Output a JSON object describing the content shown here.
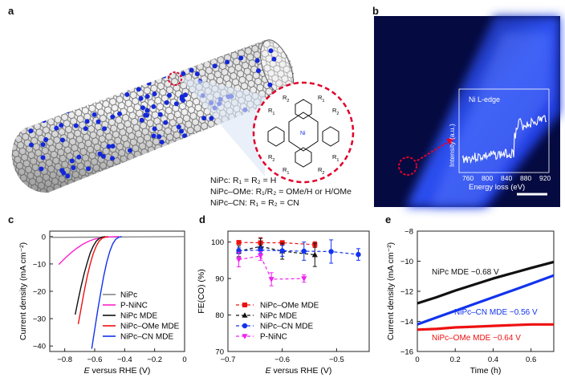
{
  "panels": {
    "a": {
      "letter": "a",
      "structure": {
        "center_atom": "Ni",
        "r_labels": [
          "R1",
          "R2",
          "R1",
          "R2",
          "R1",
          "R2",
          "R1",
          "R2"
        ]
      },
      "definitions": [
        "NiPc: R₁ = R₂ = H",
        "NiPc–OMe: R₁/R₂ = OMe/H or H/OMe",
        "NiPc–CN: R₁ = R₂ = CN"
      ]
    },
    "b": {
      "letter": "b",
      "inset": {
        "edge_label": "Ni L-edge",
        "ylabel": "Intensity (a.u.)",
        "xlabel": "Energy loss (eV)",
        "ticks": [
          "760",
          "800",
          "840",
          "880",
          "920"
        ]
      },
      "colors": {
        "background": "#1a2fd6",
        "highlight": "#e0022a"
      }
    },
    "c": {
      "letter": "c",
      "xlabel_italic": "E",
      "xlabel_rest": " versus RHE (V)",
      "ylabel": "Current density (mA cm⁻²)"
    },
    "d": {
      "letter": "d",
      "xlabel_italic": "E",
      "xlabel_rest": " versus RHE (V)",
      "ylabel": "FE(CO) (%)"
    },
    "e": {
      "letter": "e",
      "xlabel": "Time (h)",
      "ylabel": "Current density (mA cm⁻²)"
    }
  },
  "chart_data": [
    {
      "id": "c",
      "type": "line",
      "xlabel": "E versus RHE (V)",
      "ylabel": "Current density (mA cm⁻²)",
      "xlim": [
        -0.9,
        0.0
      ],
      "ylim": [
        -42,
        2
      ],
      "xticks": [
        -0.8,
        -0.6,
        -0.4,
        -0.2,
        0
      ],
      "xtick_labels": [
        "−0.8",
        "−0.6",
        "−0.4",
        "−0.2",
        "0"
      ],
      "yticks": [
        0,
        -10,
        -20,
        -30,
        -40
      ],
      "ytick_labels": [
        "0",
        "−10",
        "−20",
        "−30",
        "−40"
      ],
      "legend_position": "bottom-right",
      "series": [
        {
          "name": "NiPc",
          "color": "#888888",
          "x": [
            -0.9,
            -0.6,
            -0.3,
            0.0
          ],
          "y": [
            -0.3,
            -0.2,
            -0.1,
            0.0
          ]
        },
        {
          "name": "P-NiNC",
          "color": "#ff22cc",
          "x": [
            -0.84,
            -0.8,
            -0.76,
            -0.72,
            -0.68,
            -0.64,
            -0.6,
            -0.56,
            -0.52,
            -0.48,
            -0.44
          ],
          "y": [
            -10.2,
            -8.0,
            -6.0,
            -4.3,
            -2.8,
            -1.7,
            -0.9,
            -0.45,
            -0.2,
            -0.08,
            0.0
          ]
        },
        {
          "name": "NiPc MDE",
          "color": "#111111",
          "x": [
            -0.73,
            -0.71,
            -0.69,
            -0.67,
            -0.65,
            -0.63,
            -0.61,
            -0.59,
            -0.57,
            -0.55,
            -0.53
          ],
          "y": [
            -28.5,
            -23.0,
            -18.0,
            -13.5,
            -9.5,
            -6.0,
            -3.5,
            -1.7,
            -0.7,
            -0.2,
            0.0
          ]
        },
        {
          "name": "NiPc–OMe MDE",
          "color": "#ee1111",
          "x": [
            -0.71,
            -0.69,
            -0.67,
            -0.65,
            -0.63,
            -0.61,
            -0.59,
            -0.57,
            -0.55,
            -0.53,
            -0.51
          ],
          "y": [
            -32.0,
            -26.0,
            -20.0,
            -14.5,
            -10.0,
            -6.3,
            -3.5,
            -1.6,
            -0.6,
            -0.15,
            0.0
          ]
        },
        {
          "name": "NiPc–CN MDE",
          "color": "#1133ee",
          "x": [
            -0.62,
            -0.6,
            -0.58,
            -0.56,
            -0.54,
            -0.52,
            -0.5,
            -0.48,
            -0.46,
            -0.44,
            -0.42
          ],
          "y": [
            -41.0,
            -34.0,
            -27.0,
            -20.5,
            -14.5,
            -9.5,
            -5.5,
            -2.7,
            -1.0,
            -0.25,
            0.0
          ]
        }
      ]
    },
    {
      "id": "d",
      "type": "scatter",
      "xlabel": "E versus RHE (V)",
      "ylabel": "FE(CO) (%)",
      "xlim": [
        -0.7,
        -0.44
      ],
      "ylim": [
        70,
        103
      ],
      "xticks": [
        -0.7,
        -0.6,
        -0.5
      ],
      "xtick_labels": [
        "−0.7",
        "−0.6",
        "−0.5"
      ],
      "yticks": [
        70,
        80,
        90,
        100
      ],
      "ytick_labels": [
        "70",
        "80",
        "90",
        "100"
      ],
      "legend_position": "bottom-left",
      "series": [
        {
          "name": "NiPc–OMe MDE",
          "color": "#ee1111",
          "marker": "square",
          "x": [
            -0.68,
            -0.64,
            -0.6,
            -0.54
          ],
          "y": [
            99.9,
            99.8,
            99.8,
            99.3
          ],
          "err": [
            0.4,
            1.4,
            0.6,
            0.8
          ]
        },
        {
          "name": "NiPc MDE",
          "color": "#111111",
          "marker": "triangle-up",
          "x": [
            -0.68,
            -0.64,
            -0.6,
            -0.54
          ],
          "y": [
            97.5,
            98.8,
            97.5,
            96.5
          ],
          "err": [
            1.5,
            2.2,
            2.2,
            3.2
          ]
        },
        {
          "name": "NiPc–CN MDE",
          "color": "#1133ee",
          "marker": "circle",
          "x": [
            -0.68,
            -0.64,
            -0.6,
            -0.56,
            -0.51,
            -0.46
          ],
          "y": [
            97.6,
            97.8,
            97.6,
            97.5,
            97.4,
            96.6
          ],
          "err": [
            0.8,
            0.9,
            1.5,
            2.5,
            3.2,
            1.6
          ]
        },
        {
          "name": "P-NiNC",
          "color": "#ee22ee",
          "marker": "triangle-down",
          "x": [
            -0.68,
            -0.64,
            -0.62,
            -0.56
          ],
          "y": [
            95.2,
            96.2,
            89.8,
            90.0
          ],
          "err": [
            2.0,
            1.2,
            1.8,
            1.0
          ]
        }
      ]
    },
    {
      "id": "e",
      "type": "line",
      "xlabel": "Time (h)",
      "ylabel": "Current density (mA cm⁻²)",
      "xlim": [
        0,
        0.72
      ],
      "ylim": [
        -16,
        -8
      ],
      "xticks": [
        0,
        0.2,
        0.4,
        0.6
      ],
      "xtick_labels": [
        "0",
        "0.2",
        "0.4",
        "0.6"
      ],
      "yticks": [
        -8,
        -10,
        -12,
        -14,
        -16
      ],
      "ytick_labels": [
        "−8",
        "−10",
        "−12",
        "−14",
        "−16"
      ],
      "series": [
        {
          "name": "NiPc MDE −0.68 V",
          "color": "#111111",
          "x": [
            0,
            0.1,
            0.2,
            0.3,
            0.4,
            0.5,
            0.6,
            0.72
          ],
          "y": [
            -12.8,
            -12.4,
            -11.95,
            -11.55,
            -11.15,
            -10.8,
            -10.45,
            -10.05
          ]
        },
        {
          "name": "NiPc–CN MDE −0.56 V",
          "color": "#1133ee",
          "x": [
            0,
            0.1,
            0.2,
            0.3,
            0.4,
            0.5,
            0.6,
            0.72
          ],
          "y": [
            -14.2,
            -13.75,
            -13.3,
            -12.85,
            -12.4,
            -11.95,
            -11.5,
            -10.95
          ]
        },
        {
          "name": "NiPc–OMe MDE −0.64 V",
          "color": "#ee1111",
          "x": [
            0,
            0.1,
            0.2,
            0.3,
            0.4,
            0.5,
            0.6,
            0.72
          ],
          "y": [
            -14.55,
            -14.5,
            -14.4,
            -14.35,
            -14.3,
            -14.25,
            -14.2,
            -14.2
          ]
        }
      ]
    }
  ]
}
